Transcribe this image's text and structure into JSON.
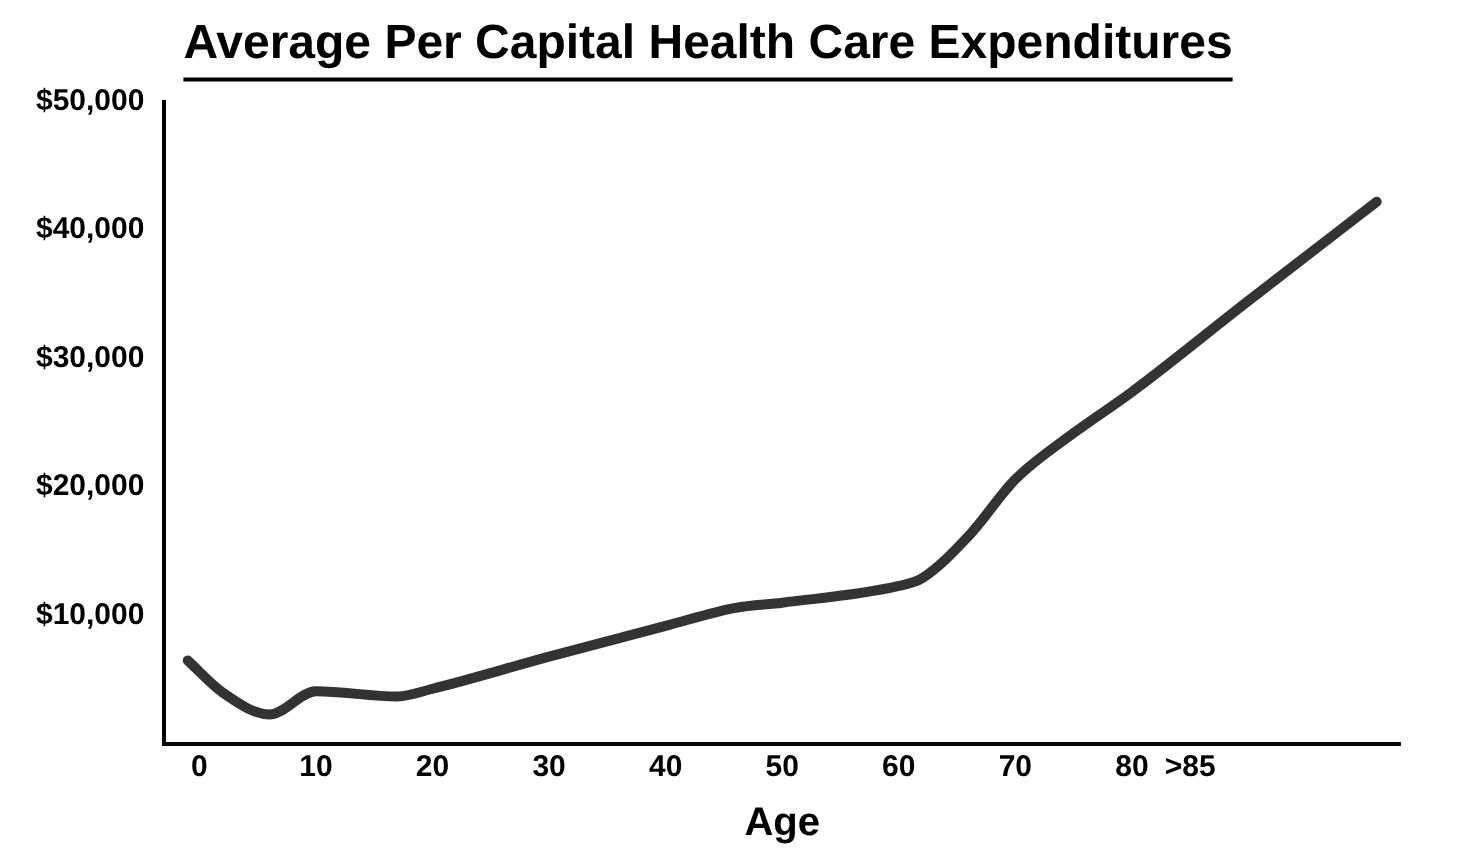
{
  "chart_data": {
    "type": "line",
    "title": "Average Per Capital Health Care Expenditures",
    "xlabel": "Age",
    "x": [
      -1,
      2,
      6,
      10,
      17,
      20,
      30,
      40,
      46,
      50,
      60,
      62,
      66,
      70,
      75,
      80,
      90,
      101
    ],
    "series": [
      {
        "color": "#333333",
        "values": [
          6500,
          4000,
          2300,
          4100,
          3700,
          4300,
          6800,
          9200,
          10600,
          11000,
          12300,
          12900,
          16200,
          20600,
          24200,
          27400,
          34500,
          42200
        ]
      }
    ],
    "xlim": [
      -3,
      103
    ],
    "xticks": [
      0,
      10,
      20,
      30,
      40,
      50,
      60,
      70,
      80,
      {
        "value": 85,
        "label": ">85"
      }
    ],
    "ylim": [
      0,
      50000
    ],
    "yticks": [
      {
        "value": 10000,
        "label": "$10,000"
      },
      {
        "value": 20000,
        "label": "$20,000"
      },
      {
        "value": 30000,
        "label": "$30,000"
      },
      {
        "value": 40000,
        "label": "$40,000"
      },
      {
        "value": 50000,
        "label": "$50,000"
      }
    ],
    "grid": false,
    "legend": false,
    "marker": "none",
    "line_style": "solid"
  }
}
